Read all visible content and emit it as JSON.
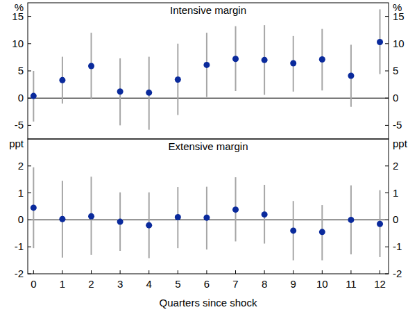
{
  "chart_data": [
    {
      "type": "scatter",
      "title": "Intensive margin",
      "y_label": "%",
      "x": [
        0,
        1,
        2,
        3,
        4,
        5,
        6,
        7,
        8,
        9,
        10,
        11,
        12
      ],
      "xlim": [
        -0.2,
        12.3
      ],
      "xticks": [
        0,
        1,
        2,
        3,
        4,
        5,
        6,
        7,
        8,
        9,
        10,
        11,
        12
      ],
      "ylim": [
        -7.5,
        17.5
      ],
      "yticks": [
        -5,
        0,
        5,
        10,
        15
      ],
      "grid": false,
      "tick_labels": "y",
      "series": [
        {
          "color": "#0a2a9c",
          "marker": "circle",
          "values": [
            0.4,
            3.3,
            5.9,
            1.2,
            1.0,
            3.4,
            6.1,
            7.2,
            7.0,
            6.4,
            7.1,
            4.1,
            10.3
          ],
          "ci_lower": [
            -4.3,
            -1.0,
            -0.2,
            -5.0,
            -5.8,
            -3.1,
            0.2,
            1.3,
            0.6,
            1.2,
            1.4,
            -1.6,
            4.4
          ],
          "ci_upper": [
            5.0,
            7.6,
            12.0,
            7.3,
            7.6,
            10.0,
            12.0,
            13.2,
            13.4,
            11.4,
            12.7,
            9.8,
            16.3
          ]
        }
      ]
    },
    {
      "type": "scatter",
      "title": "Extensive margin",
      "y_label": "ppt",
      "x_label": "Quarters since shock",
      "x": [
        0,
        1,
        2,
        3,
        4,
        5,
        6,
        7,
        8,
        9,
        10,
        11,
        12
      ],
      "xlim": [
        -0.2,
        12.3
      ],
      "xticks": [
        0,
        1,
        2,
        3,
        4,
        5,
        6,
        7,
        8,
        9,
        10,
        11,
        12
      ],
      "ylim": [
        -2,
        3
      ],
      "yticks": [
        -2,
        -1,
        0,
        1,
        2
      ],
      "grid": false,
      "tick_labels": true,
      "series": [
        {
          "color": "#0a2a9c",
          "marker": "circle",
          "values": [
            0.45,
            0.03,
            0.13,
            -0.07,
            -0.2,
            0.1,
            0.08,
            0.38,
            0.2,
            -0.4,
            -0.45,
            0.0,
            -0.15
          ],
          "ci_lower": [
            -1.05,
            -1.4,
            -1.3,
            -1.15,
            -1.42,
            -1.05,
            -1.1,
            -0.8,
            -0.88,
            -1.5,
            -1.5,
            -1.28,
            -1.38
          ],
          "ci_upper": [
            1.95,
            1.45,
            1.6,
            1.02,
            1.02,
            1.22,
            1.23,
            1.58,
            1.3,
            0.7,
            0.55,
            1.28,
            1.1
          ]
        }
      ]
    }
  ]
}
